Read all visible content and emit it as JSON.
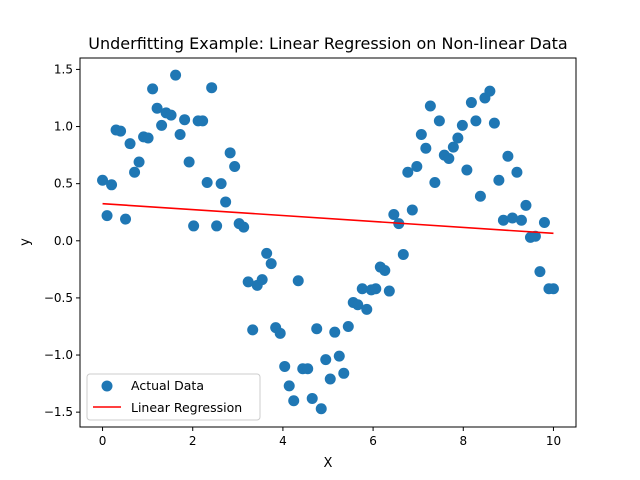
{
  "chart_data": {
    "type": "scatter",
    "title": "Underfitting Example: Linear Regression on Non-linear Data",
    "xlabel": "X",
    "ylabel": "y",
    "xlim": [
      -0.5,
      10.5
    ],
    "ylim": [
      -1.63,
      1.6
    ],
    "xticks": [
      0,
      2,
      4,
      6,
      8,
      10
    ],
    "xtick_labels": [
      "0",
      "2",
      "4",
      "6",
      "8",
      "10"
    ],
    "yticks": [
      -1.5,
      -1.0,
      -0.5,
      0.0,
      0.5,
      1.0,
      1.5
    ],
    "ytick_labels": [
      "−1.5",
      "−1.0",
      "−0.5",
      "0.0",
      "0.5",
      "1.0",
      "1.5"
    ],
    "grid": false,
    "legend_position": "lower-left",
    "series": [
      {
        "name": "Actual Data",
        "kind": "scatter",
        "color": "#1f77b4",
        "points": [
          [
            0.0,
            0.53
          ],
          [
            0.1,
            0.22
          ],
          [
            0.2,
            0.49
          ],
          [
            0.3,
            0.97
          ],
          [
            0.4,
            0.96
          ],
          [
            0.51,
            0.19
          ],
          [
            0.61,
            0.85
          ],
          [
            0.71,
            0.6
          ],
          [
            0.81,
            0.69
          ],
          [
            0.91,
            0.91
          ],
          [
            1.01,
            0.9
          ],
          [
            1.11,
            1.33
          ],
          [
            1.21,
            1.16
          ],
          [
            1.31,
            1.01
          ],
          [
            1.41,
            1.12
          ],
          [
            1.52,
            1.1
          ],
          [
            1.62,
            1.45
          ],
          [
            1.72,
            0.93
          ],
          [
            1.82,
            1.06
          ],
          [
            1.92,
            0.69
          ],
          [
            2.02,
            0.13
          ],
          [
            2.12,
            1.05
          ],
          [
            2.22,
            1.05
          ],
          [
            2.32,
            0.51
          ],
          [
            2.42,
            1.34
          ],
          [
            2.53,
            0.13
          ],
          [
            2.63,
            0.5
          ],
          [
            2.73,
            0.34
          ],
          [
            2.83,
            0.77
          ],
          [
            2.93,
            0.65
          ],
          [
            3.03,
            0.15
          ],
          [
            3.13,
            0.12
          ],
          [
            3.23,
            -0.36
          ],
          [
            3.33,
            -0.78
          ],
          [
            3.43,
            -0.39
          ],
          [
            3.54,
            -0.34
          ],
          [
            3.64,
            -0.11
          ],
          [
            3.74,
            -0.2
          ],
          [
            3.84,
            -0.76
          ],
          [
            3.94,
            -0.81
          ],
          [
            4.04,
            -1.1
          ],
          [
            4.14,
            -1.27
          ],
          [
            4.24,
            -1.4
          ],
          [
            4.34,
            -0.35
          ],
          [
            4.44,
            -1.12
          ],
          [
            4.55,
            -1.12
          ],
          [
            4.65,
            -1.38
          ],
          [
            4.75,
            -0.77
          ],
          [
            4.85,
            -1.47
          ],
          [
            4.95,
            -1.04
          ],
          [
            5.05,
            -1.21
          ],
          [
            5.15,
            -0.8
          ],
          [
            5.25,
            -1.01
          ],
          [
            5.35,
            -1.16
          ],
          [
            5.45,
            -0.75
          ],
          [
            5.56,
            -0.54
          ],
          [
            5.66,
            -0.56
          ],
          [
            5.76,
            -0.42
          ],
          [
            5.86,
            -0.6
          ],
          [
            5.96,
            -0.43
          ],
          [
            6.06,
            -0.42
          ],
          [
            6.16,
            -0.23
          ],
          [
            6.26,
            -0.26
          ],
          [
            6.36,
            -0.44
          ],
          [
            6.46,
            0.23
          ],
          [
            6.57,
            0.15
          ],
          [
            6.67,
            -0.12
          ],
          [
            6.77,
            0.6
          ],
          [
            6.87,
            0.27
          ],
          [
            6.97,
            0.65
          ],
          [
            7.07,
            0.93
          ],
          [
            7.17,
            0.81
          ],
          [
            7.27,
            1.18
          ],
          [
            7.37,
            0.51
          ],
          [
            7.47,
            1.05
          ],
          [
            7.58,
            0.75
          ],
          [
            7.68,
            0.72
          ],
          [
            7.78,
            0.82
          ],
          [
            7.88,
            0.9
          ],
          [
            7.98,
            1.01
          ],
          [
            8.08,
            0.62
          ],
          [
            8.18,
            1.21
          ],
          [
            8.28,
            1.05
          ],
          [
            8.38,
            0.39
          ],
          [
            8.48,
            1.25
          ],
          [
            8.59,
            1.31
          ],
          [
            8.69,
            1.03
          ],
          [
            8.79,
            0.53
          ],
          [
            8.89,
            0.18
          ],
          [
            8.99,
            0.74
          ],
          [
            9.09,
            0.2
          ],
          [
            9.19,
            0.6
          ],
          [
            9.29,
            0.18
          ],
          [
            9.39,
            0.31
          ],
          [
            9.49,
            0.03
          ],
          [
            9.6,
            0.04
          ],
          [
            9.7,
            -0.27
          ],
          [
            9.8,
            0.16
          ],
          [
            9.9,
            -0.42
          ],
          [
            10.0,
            -0.42
          ]
        ]
      },
      {
        "name": "Linear Regression",
        "kind": "line",
        "color": "#ff0000",
        "x": [
          0,
          10
        ],
        "y": [
          0.325,
          0.065
        ]
      }
    ]
  }
}
